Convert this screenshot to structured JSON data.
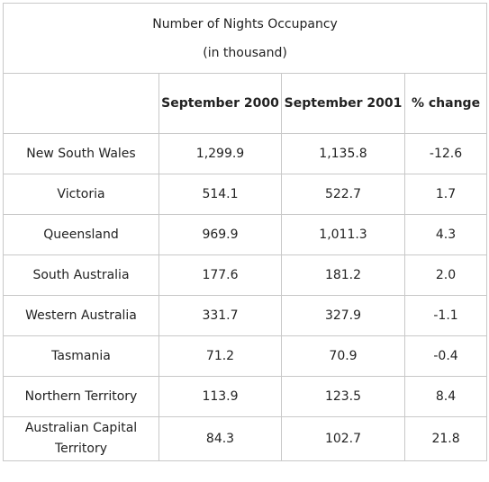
{
  "chart_data": {
    "type": "table",
    "title": "Number of Nights Occupancy",
    "subtitle": "(in thousand)",
    "columns": [
      "",
      "September 2000",
      "September 2001",
      "% change"
    ],
    "rows": [
      {
        "region": "New South Wales",
        "sep_2000": "1,299.9",
        "sep_2001": "1,135.8",
        "pct_change": "-12.6"
      },
      {
        "region": "Victoria",
        "sep_2000": "514.1",
        "sep_2001": "522.7",
        "pct_change": "1.7"
      },
      {
        "region": "Queensland",
        "sep_2000": "969.9",
        "sep_2001": "1,011.3",
        "pct_change": "4.3"
      },
      {
        "region": "South Australia",
        "sep_2000": "177.6",
        "sep_2001": "181.2",
        "pct_change": "2.0"
      },
      {
        "region": "Western Australia",
        "sep_2000": "331.7",
        "sep_2001": "327.9",
        "pct_change": "-1.1"
      },
      {
        "region": "Tasmania",
        "sep_2000": "71.2",
        "sep_2001": "70.9",
        "pct_change": "-0.4"
      },
      {
        "region": "Northern Territory",
        "sep_2000": "113.9",
        "sep_2001": "123.5",
        "pct_change": "8.4"
      },
      {
        "region": "Australian Capital Territory",
        "sep_2000": "84.3",
        "sep_2001": "102.7",
        "pct_change": "21.8"
      }
    ]
  }
}
